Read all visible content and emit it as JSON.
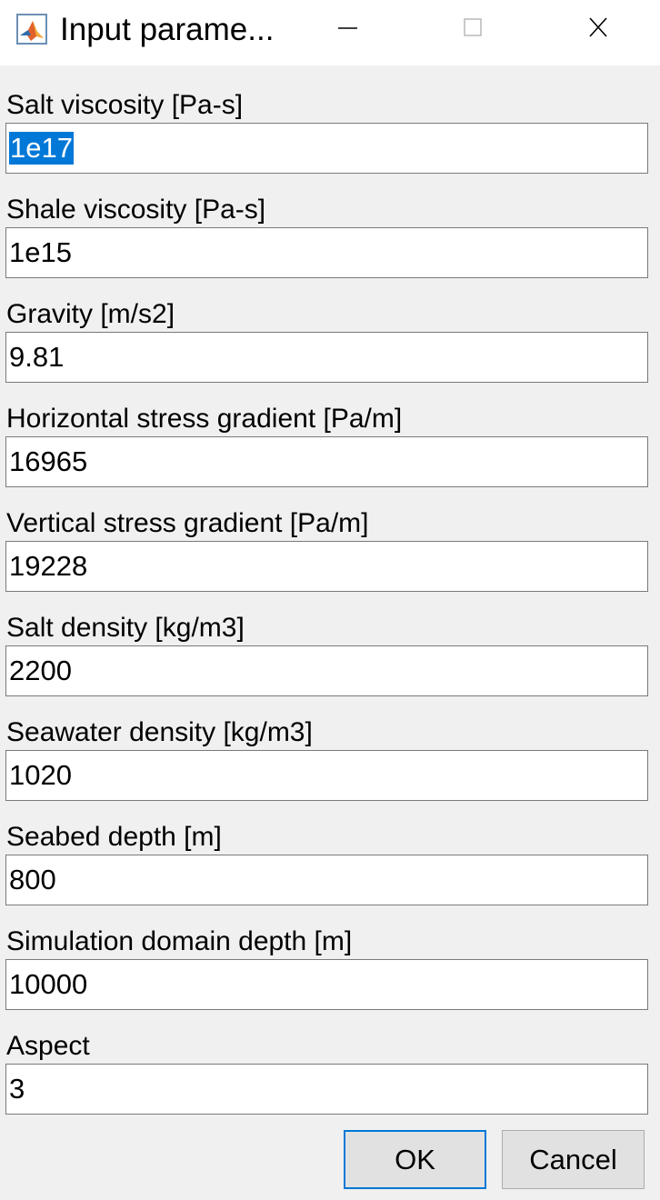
{
  "window": {
    "title": "Input parame...",
    "icon": "matlab-icon",
    "controls": [
      "minimize-icon",
      "maximize-icon",
      "close-icon"
    ]
  },
  "fields": [
    {
      "label": "Salt viscosity [Pa-s]",
      "value": "1e17",
      "selected": true
    },
    {
      "label": "Shale viscosity [Pa-s]",
      "value": "1e15"
    },
    {
      "label": "Gravity [m/s2]",
      "value": "9.81"
    },
    {
      "label": "Horizontal stress gradient [Pa/m]",
      "value": "16965"
    },
    {
      "label": "Vertical stress gradient [Pa/m]",
      "value": "19228"
    },
    {
      "label": "Salt density [kg/m3]",
      "value": "2200"
    },
    {
      "label": "Seawater density [kg/m3]",
      "value": "1020"
    },
    {
      "label": "Seabed depth [m]",
      "value": "800"
    },
    {
      "label": "Simulation domain depth [m]",
      "value": "10000"
    },
    {
      "label": "Aspect",
      "value": "3"
    }
  ],
  "buttons": {
    "ok_label": "OK",
    "cancel_label": "Cancel"
  },
  "colors": {
    "selection": "#0078d7",
    "background": "#f0f0f0",
    "focus_border": "#0078d7"
  }
}
